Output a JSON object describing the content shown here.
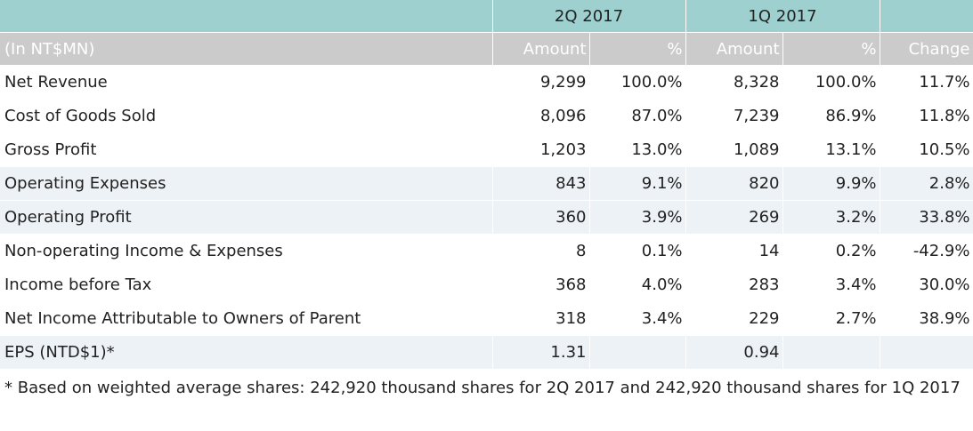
{
  "table": {
    "periods": {
      "current": "2Q 2017",
      "previous": "1Q 2017"
    },
    "headers": {
      "unit": "(In NT$MN)",
      "amount_current": "Amount",
      "pct_current": "%",
      "amount_previous": "Amount",
      "pct_previous": "%",
      "change": "Change"
    },
    "rows": [
      {
        "label": "Net Revenue",
        "amt_current": "9,299",
        "pct_current": "100.0%",
        "amt_previous": "8,328",
        "pct_previous": "100.0%",
        "change": "11.7%"
      },
      {
        "label": "Cost of Goods Sold",
        "amt_current": "8,096",
        "pct_current": "87.0%",
        "amt_previous": "7,239",
        "pct_previous": "86.9%",
        "change": "11.8%"
      },
      {
        "label": "Gross Profit",
        "amt_current": "1,203",
        "pct_current": "13.0%",
        "amt_previous": "1,089",
        "pct_previous": "13.1%",
        "change": "10.5%"
      },
      {
        "label": "Operating Expenses",
        "amt_current": "843",
        "pct_current": "9.1%",
        "amt_previous": "820",
        "pct_previous": "9.9%",
        "change": "2.8%"
      },
      {
        "label": "Operating Profit",
        "amt_current": "360",
        "pct_current": "3.9%",
        "amt_previous": "269",
        "pct_previous": "3.2%",
        "change": "33.8%"
      },
      {
        "label": "Non-operating Income & Expenses",
        "amt_current": "8",
        "pct_current": "0.1%",
        "amt_previous": "14",
        "pct_previous": "0.2%",
        "change": "-42.9%"
      },
      {
        "label": "Income before Tax",
        "amt_current": "368",
        "pct_current": "4.0%",
        "amt_previous": "283",
        "pct_previous": "3.4%",
        "change": "30.0%"
      },
      {
        "label": "Net Income Attributable to Owners of Parent",
        "amt_current": "318",
        "pct_current": "3.4%",
        "amt_previous": "229",
        "pct_previous": "2.7%",
        "change": "38.9%"
      },
      {
        "label": "EPS (NTD$1)*",
        "amt_current": "1.31",
        "pct_current": "",
        "amt_previous": "0.94",
        "pct_previous": "",
        "change": ""
      }
    ],
    "footnote": "* Based on weighted average shares: 242,920 thousand shares for 2Q 2017 and 242,920 thousand shares for 1Q 2017"
  },
  "colors": {
    "period_header_bg": "#9fd0d0",
    "column_header_bg": "#cbcbcb",
    "shaded_row_bg": "#edf2f6"
  }
}
